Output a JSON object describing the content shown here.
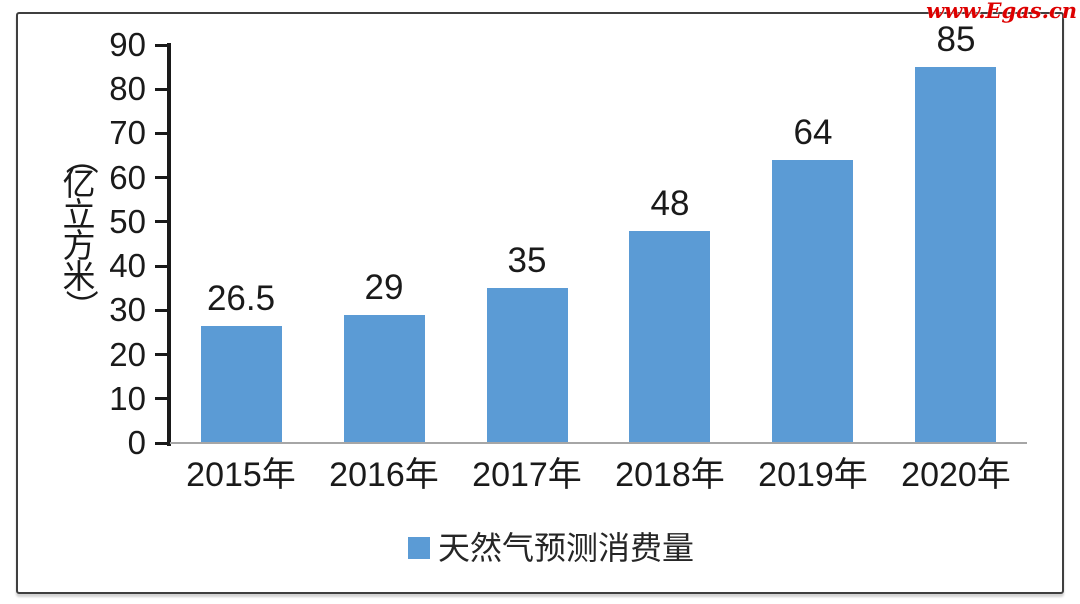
{
  "watermark": "www.Egas.cn",
  "chart_data": {
    "type": "bar",
    "title": "",
    "xlabel": "",
    "ylabel": "（亿立方米）",
    "categories": [
      "2015年",
      "2016年",
      "2017年",
      "2018年",
      "2019年",
      "2020年"
    ],
    "values": [
      26.5,
      29,
      35,
      48,
      64,
      85
    ],
    "data_labels": [
      "26.5",
      "29",
      "35",
      "48",
      "64",
      "85"
    ],
    "ylim": [
      0,
      90
    ],
    "ytick_step": 10,
    "yticks": [
      0,
      10,
      20,
      30,
      40,
      50,
      60,
      70,
      80,
      90
    ],
    "grid": false,
    "legend": {
      "label": "天然气预测消费量",
      "position": "bottom",
      "marker": "square"
    },
    "colors": {
      "bar": "#5B9BD5",
      "y_axis_line": "#1a1a1a",
      "x_axis_line": "#a6a6a6",
      "tick": "#1a1a1a",
      "text": "#1a1a1a",
      "frame_border": "#3f3f3f",
      "watermark": "#dd0000",
      "background": "#ffffff"
    }
  }
}
